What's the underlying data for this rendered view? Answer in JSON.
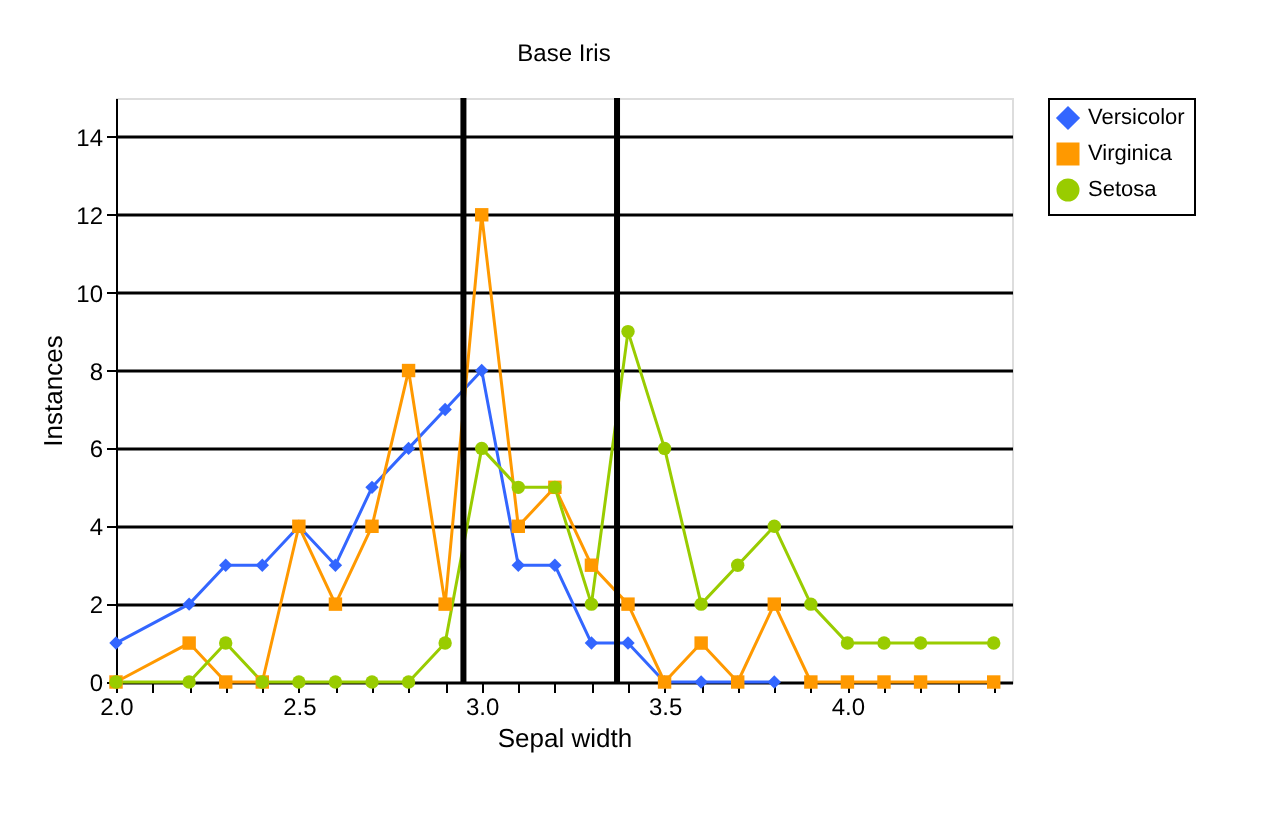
{
  "chart_data": {
    "type": "line",
    "title": "Base Iris",
    "xlabel": "Sepal width",
    "ylabel": "Instances",
    "x": [
      2.0,
      2.2,
      2.3,
      2.4,
      2.5,
      2.6,
      2.7,
      2.8,
      2.9,
      3.0,
      3.1,
      3.2,
      3.3,
      3.4,
      3.5,
      3.6,
      3.7,
      3.8,
      3.9,
      4.0,
      4.1,
      4.2,
      4.4
    ],
    "series": [
      {
        "name": "Versicolor",
        "color": "#3366ff",
        "marker": "diamond",
        "values": [
          1,
          2,
          3,
          3,
          4,
          3,
          5,
          6,
          7,
          8,
          3,
          3,
          1,
          1,
          0,
          0,
          0,
          0,
          null,
          null,
          null,
          null,
          null
        ]
      },
      {
        "name": "Virginica",
        "color": "#ff9900",
        "marker": "square",
        "values": [
          0,
          1,
          0,
          0,
          4,
          2,
          4,
          8,
          2,
          12,
          4,
          5,
          3,
          2,
          0,
          1,
          0,
          2,
          0,
          0,
          0,
          0,
          0
        ]
      },
      {
        "name": "Setosa",
        "color": "#99cc00",
        "marker": "circle",
        "values": [
          0,
          0,
          1,
          0,
          0,
          0,
          0,
          0,
          1,
          6,
          5,
          5,
          2,
          9,
          6,
          2,
          3,
          4,
          2,
          1,
          1,
          1,
          1
        ]
      }
    ],
    "xlim": [
      2.0,
      4.45
    ],
    "xticks": [
      {
        "value": 2.0,
        "label": "2.0"
      },
      {
        "value": 2.1,
        "label": null
      },
      {
        "value": 2.2,
        "label": null
      },
      {
        "value": 2.3,
        "label": null
      },
      {
        "value": 2.4,
        "label": null
      },
      {
        "value": 2.5,
        "label": "2.5"
      },
      {
        "value": 2.6,
        "label": null
      },
      {
        "value": 2.7,
        "label": null
      },
      {
        "value": 2.8,
        "label": null
      },
      {
        "value": 2.9,
        "label": null
      },
      {
        "value": 3.0,
        "label": "3.0"
      },
      {
        "value": 3.1,
        "label": null
      },
      {
        "value": 3.2,
        "label": null
      },
      {
        "value": 3.3,
        "label": null
      },
      {
        "value": 3.4,
        "label": null
      },
      {
        "value": 3.5,
        "label": "3.5"
      },
      {
        "value": 3.6,
        "label": null
      },
      {
        "value": 3.7,
        "label": null
      },
      {
        "value": 3.8,
        "label": null
      },
      {
        "value": 3.9,
        "label": null
      },
      {
        "value": 4.0,
        "label": "4.0"
      },
      {
        "value": 4.1,
        "label": null
      },
      {
        "value": 4.2,
        "label": null
      },
      {
        "value": 4.3,
        "label": null
      },
      {
        "value": 4.4,
        "label": null
      }
    ],
    "ylim": [
      0,
      15
    ],
    "yticks": [
      0,
      2,
      4,
      6,
      8,
      10,
      12,
      14
    ],
    "ref_lines": [
      {
        "axis": "x",
        "value": 2.95,
        "color": "#000000"
      },
      {
        "axis": "x",
        "value": 3.37,
        "color": "#000000"
      }
    ],
    "grid": "y",
    "legend": "right",
    "line_style": "solid"
  }
}
